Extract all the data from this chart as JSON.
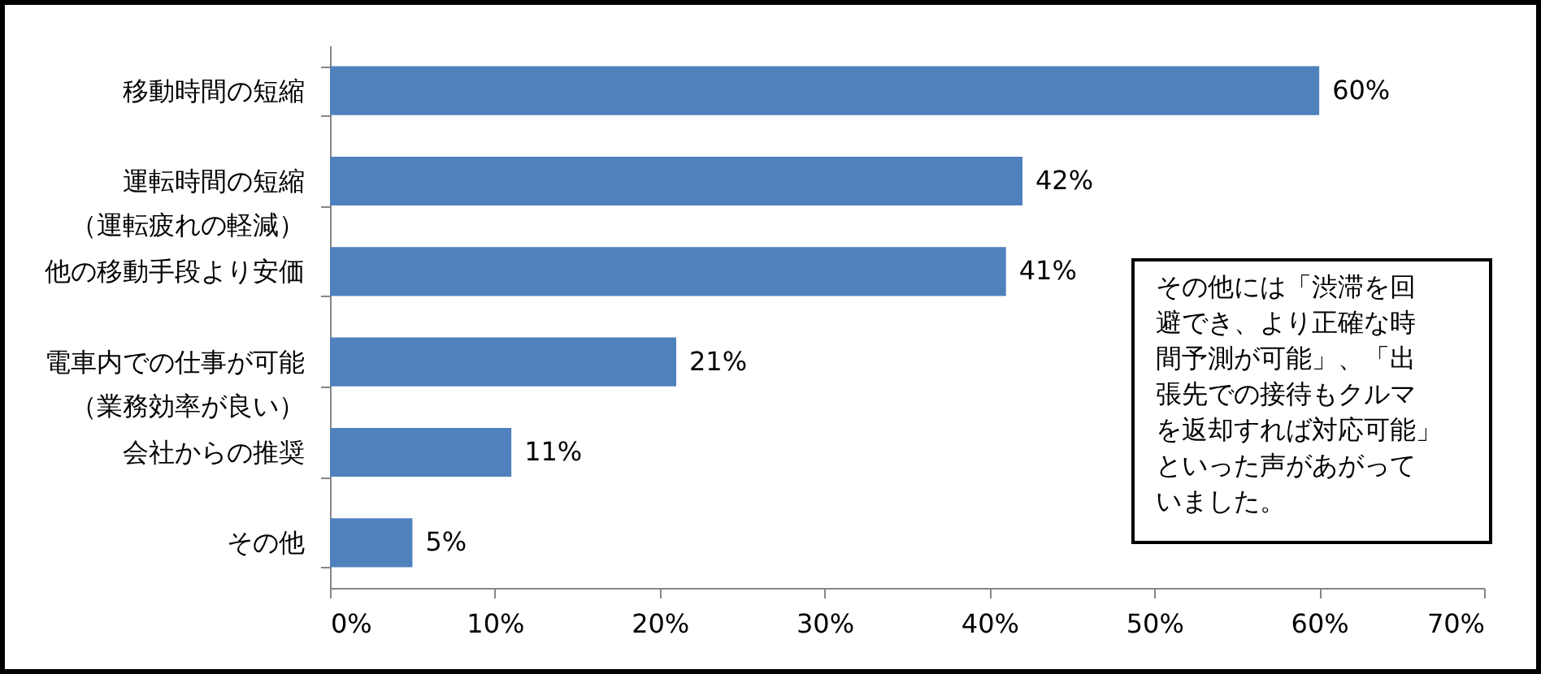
{
  "chart_data": {
    "type": "bar",
    "orientation": "horizontal",
    "categories": [
      "移動時間の短縮",
      "運転時間の短縮（運転疲れの軽減）",
      "他の移動手段より安価",
      "電車内での仕事が可能（業務効率が良い）",
      "会社からの推奨",
      "その他"
    ],
    "values": [
      60,
      42,
      41,
      21,
      11,
      5
    ],
    "value_labels": [
      "60%",
      "42%",
      "41%",
      "21%",
      "11%",
      "5%"
    ],
    "color": "#4f81bd",
    "xlim": [
      0,
      70
    ],
    "xticks": [
      {
        "value": 0,
        "label": "0%"
      },
      {
        "value": 10,
        "label": "10%"
      },
      {
        "value": 20,
        "label": "20%"
      },
      {
        "value": 30,
        "label": "30%"
      },
      {
        "value": 40,
        "label": "40%"
      },
      {
        "value": 50,
        "label": "50%"
      },
      {
        "value": 60,
        "label": "60%"
      },
      {
        "value": 70,
        "label": "70%"
      }
    ],
    "annotations": [
      "その他には「渋滞を回避でき、より正確な時間予測が可能」、「出張先での接待もクルマを返却すれば対応可能」といった声があがっていました。"
    ]
  }
}
